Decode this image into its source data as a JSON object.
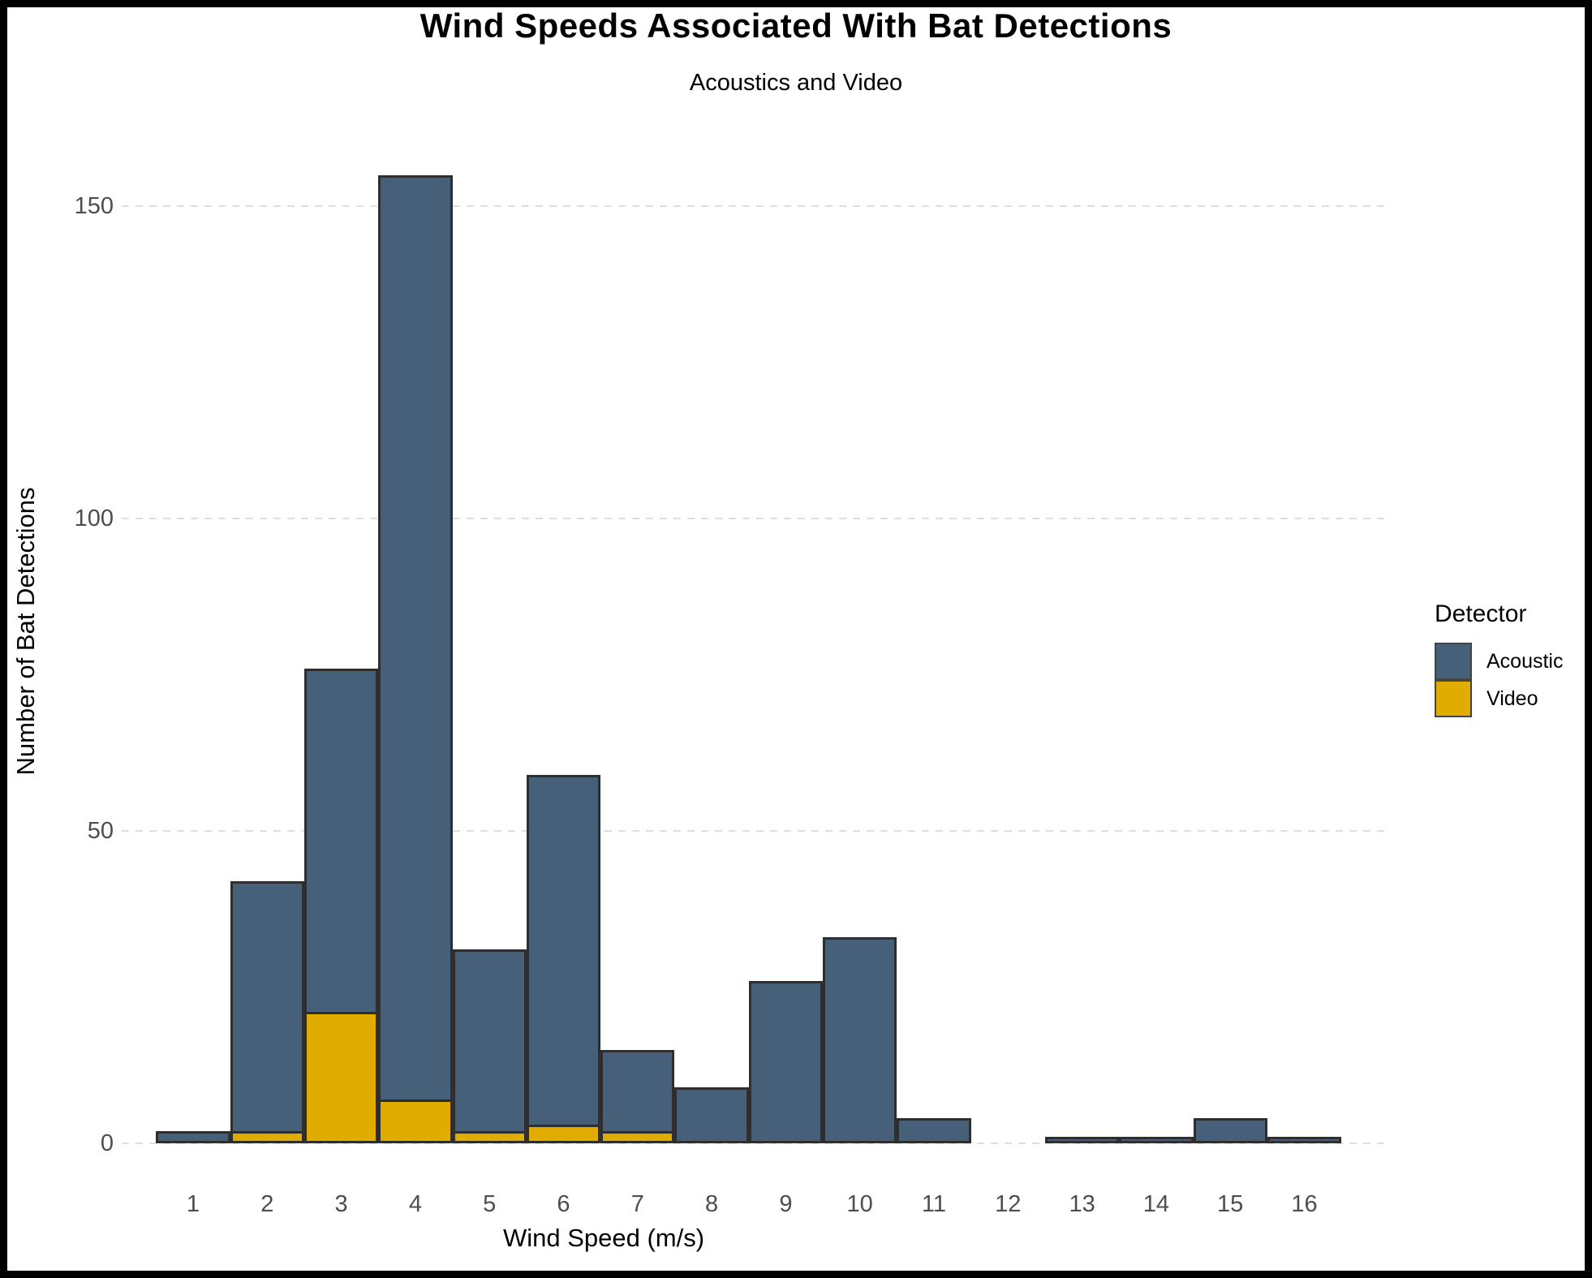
{
  "chart": {
    "title": "Wind Speeds Associated With Bat Detections",
    "subtitle": "Acoustics and Video",
    "x_axis_title": "Wind Speed (m/s)",
    "y_axis_title": "Number of Bat Detections",
    "legend": {
      "title": "Detector",
      "items": [
        {
          "label": "Acoustic",
          "color": "#46607A"
        },
        {
          "label": "Video",
          "color": "#E0AC00"
        }
      ]
    }
  },
  "chart_data": {
    "type": "bar",
    "stacked": true,
    "title": "Wind Speeds Associated With Bat Detections",
    "subtitle": "Acoustics and Video",
    "xlabel": "Wind Speed (m/s)",
    "ylabel": "Number of Bat Detections",
    "categories": [
      1,
      2,
      3,
      4,
      5,
      6,
      7,
      8,
      9,
      10,
      11,
      12,
      13,
      14,
      15,
      16
    ],
    "series": [
      {
        "name": "Video",
        "color": "#E0AC00",
        "values": [
          0,
          2,
          21,
          7,
          2,
          3,
          2,
          0,
          0,
          0,
          0,
          0,
          0,
          0,
          0,
          0
        ]
      },
      {
        "name": "Acoustic",
        "color": "#46607A",
        "values": [
          2,
          40,
          55,
          148,
          29,
          56,
          13,
          9,
          26,
          33,
          4,
          0,
          1,
          1,
          4,
          1
        ]
      }
    ],
    "totals": [
      2,
      42,
      76,
      155,
      31,
      59,
      15,
      9,
      26,
      33,
      4,
      0,
      1,
      1,
      4,
      1
    ],
    "ylim": [
      0,
      160
    ],
    "yticks": [
      0,
      50,
      100,
      150
    ],
    "grid": "horizontal-dashed-major-y",
    "legend_position": "right",
    "bar_border_color": "#2E2E2E",
    "gridline_color": "#DEDEDE",
    "tick_label_color": "#4D4D4D"
  }
}
